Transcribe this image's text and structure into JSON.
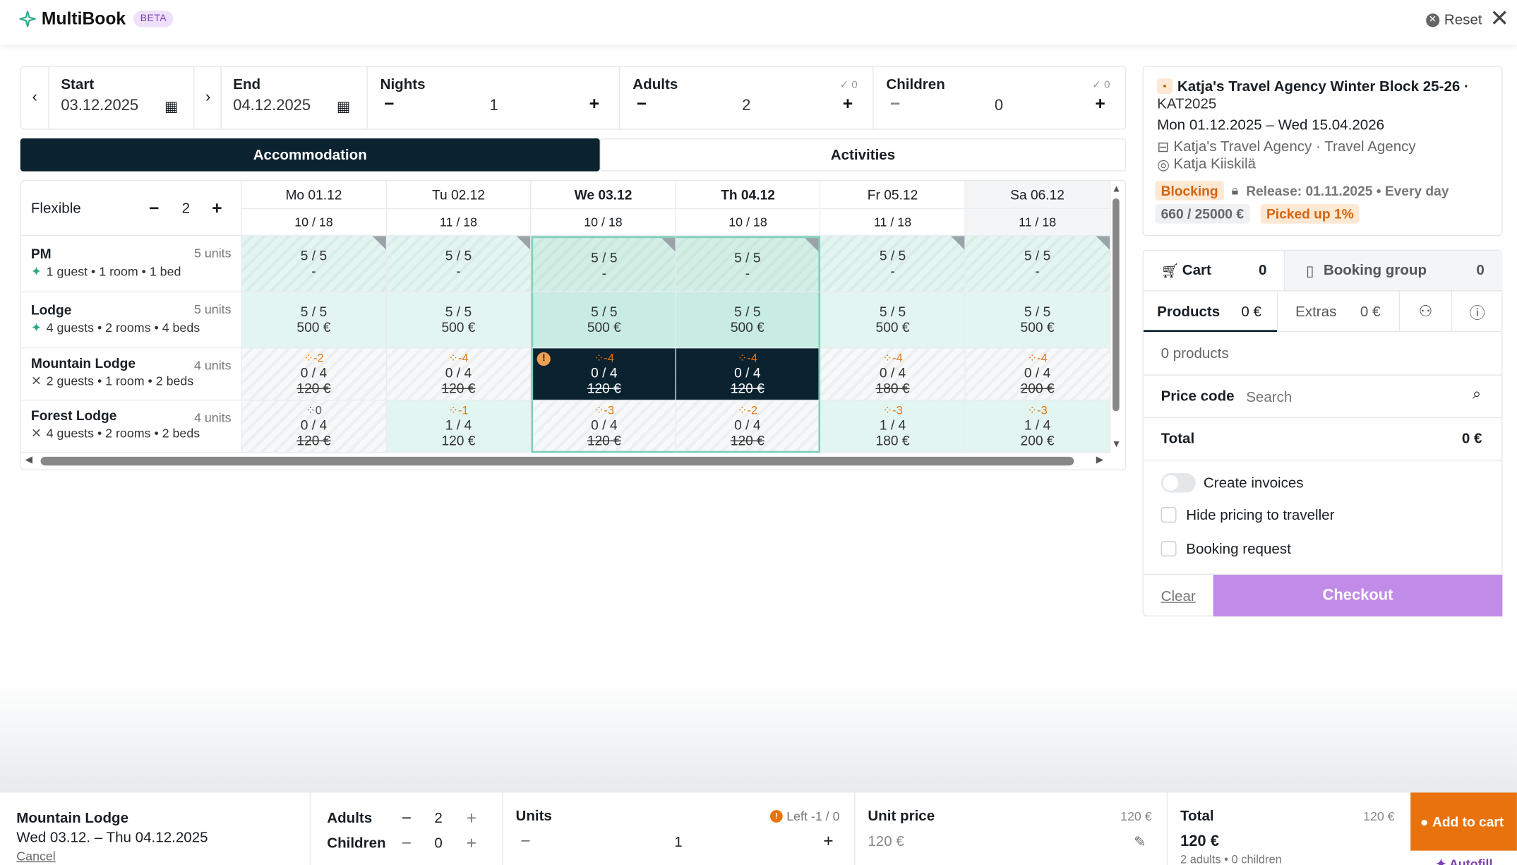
{
  "header": {
    "title": "MultiBook",
    "badge": "BETA",
    "reset": "Reset"
  },
  "search": {
    "start_label": "Start",
    "start_value": "03.12.2025",
    "end_label": "End",
    "end_value": "04.12.2025",
    "nights_label": "Nights",
    "nights_value": "1",
    "adults_label": "Adults",
    "adults_value": "2",
    "adults_check": "0",
    "children_label": "Children",
    "children_value": "0",
    "children_check": "0"
  },
  "tabs": {
    "accommodation": "Accommodation",
    "activities": "Activities"
  },
  "grid": {
    "flexible_label": "Flexible",
    "flexible_value": "2",
    "days": [
      {
        "label": "Mo 01.12",
        "occ": "10 / 18"
      },
      {
        "label": "Tu 02.12",
        "occ": "11 / 18"
      },
      {
        "label": "We 03.12",
        "occ": "10 / 18"
      },
      {
        "label": "Th 04.12",
        "occ": "10 / 18"
      },
      {
        "label": "Fr 05.12",
        "occ": "11 / 18"
      },
      {
        "label": "Sa 06.12",
        "occ": "11 / 18"
      }
    ],
    "rows": [
      {
        "name": "PM",
        "units": "5 units",
        "desc": "1 guest • 1 room • 1 bed",
        "cells": [
          {
            "a": "5 / 5",
            "p": "-"
          },
          {
            "a": "5 / 5",
            "p": "-"
          },
          {
            "a": "5 / 5",
            "p": "-"
          },
          {
            "a": "5 / 5",
            "p": "-"
          },
          {
            "a": "5 / 5",
            "p": "-"
          },
          {
            "a": "5 / 5",
            "p": "-"
          }
        ]
      },
      {
        "name": "Lodge",
        "units": "5 units",
        "desc": "4 guests • 2 rooms • 4 beds",
        "cells": [
          {
            "a": "5 / 5",
            "p": "500 €"
          },
          {
            "a": "5 / 5",
            "p": "500 €"
          },
          {
            "a": "5 / 5",
            "p": "500 €"
          },
          {
            "a": "5 / 5",
            "p": "500 €"
          },
          {
            "a": "5 / 5",
            "p": "500 €"
          },
          {
            "a": "5 / 5",
            "p": "500 €"
          }
        ]
      },
      {
        "name": "Mountain Lodge",
        "units": "4 units",
        "desc": "2 guests • 1 room • 2 beds",
        "cells": [
          {
            "t": "-2",
            "a": "0 / 4",
            "p": "120 €"
          },
          {
            "t": "-4",
            "a": "0 / 4",
            "p": "120 €"
          },
          {
            "t": "-4",
            "a": "0 / 4",
            "p": "120 €"
          },
          {
            "t": "-4",
            "a": "0 / 4",
            "p": "120 €"
          },
          {
            "t": "-4",
            "a": "0 / 4",
            "p": "180 €"
          },
          {
            "t": "-4",
            "a": "0 / 4",
            "p": "200 €"
          }
        ]
      },
      {
        "name": "Forest Lodge",
        "units": "4 units",
        "desc": "4 guests • 2 rooms • 2 beds",
        "cells": [
          {
            "t": "0",
            "a": "0 / 4",
            "p": "120 €"
          },
          {
            "t": "-1",
            "a": "1 / 4",
            "p": "120 €"
          },
          {
            "t": "-3",
            "a": "0 / 4",
            "p": "120 €"
          },
          {
            "t": "-2",
            "a": "0 / 4",
            "p": "120 €"
          },
          {
            "t": "-3",
            "a": "1 / 4",
            "p": "180 €"
          },
          {
            "t": "-3",
            "a": "1 / 4",
            "p": "200 €"
          }
        ]
      }
    ]
  },
  "block": {
    "title": "Katja's Travel Agency Winter Block 25-26 ·",
    "code": "KAT2025",
    "dates": "Mon 01.12.2025 – Wed 15.04.2026",
    "agency": "Katja's Travel Agency · Travel Agency",
    "person": "Katja Kiiskilä",
    "status": "Blocking",
    "release": "Release: 01.11.2025 • Every day",
    "pickup_amount": "660 / 25000 €",
    "picked": "Picked up 1%"
  },
  "cart": {
    "cart_label": "Cart",
    "cart_count": "0",
    "group_label": "Booking group",
    "group_count": "0",
    "products_label": "Products",
    "products_value": "0 €",
    "extras_label": "Extras",
    "extras_value": "0 €",
    "products_count": "0 products",
    "price_code_label": "Price code",
    "price_code_placeholder": "Search",
    "total_label": "Total",
    "total_value": "0 €",
    "create_invoices": "Create invoices",
    "hide_pricing": "Hide pricing to traveller",
    "booking_request": "Booking request",
    "clear": "Clear",
    "checkout": "Checkout"
  },
  "bottom": {
    "name": "Mountain Lodge",
    "dates": "Wed 03.12. – Thu 04.12.2025",
    "cancel": "Cancel",
    "adults_label": "Adults",
    "adults_value": "2",
    "children_label": "Children",
    "children_value": "0",
    "units_label": "Units",
    "units_left": "Left -1 / 0",
    "units_value": "1",
    "unit_price_label": "Unit price",
    "unit_price_ref": "120 €",
    "unit_price_value": "120 €",
    "total_label": "Total",
    "total_ref": "120 €",
    "total_value": "120 €",
    "total_sub": "2 adults • 0 children",
    "add_to_cart": "Add to cart",
    "autofill": "Autofill"
  },
  "colors": {
    "dark": "#0b2230",
    "accent": "#2fa88a",
    "orange": "#e8730e",
    "purple": "#c18be8"
  }
}
